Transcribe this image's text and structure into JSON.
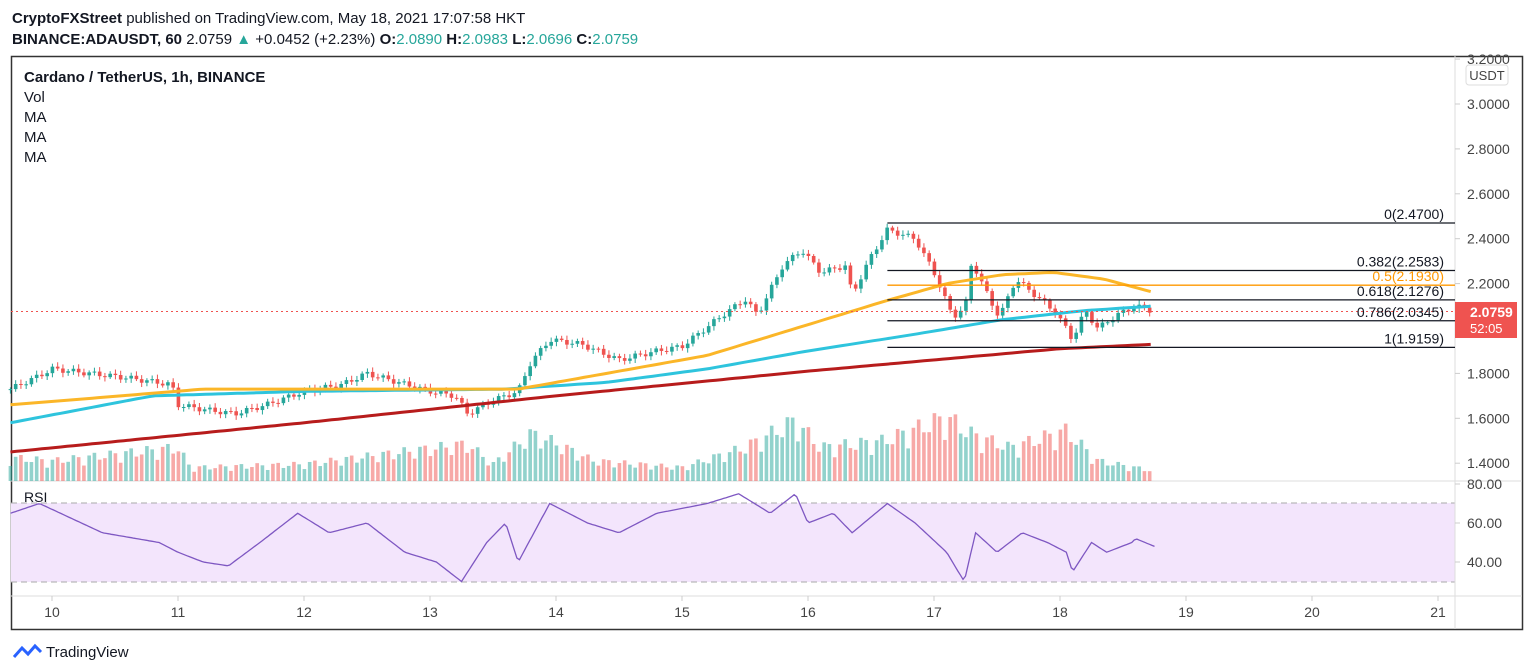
{
  "header": {
    "author": "CryptoFXStreet",
    "published": "published on TradingView.com, May 18, 2021 17:07:58 HKT",
    "symbol": "BINANCE:ADAUSDT, 60",
    "last": "2.0759",
    "change": "+0.0452 (+2.23%)",
    "o_label": "O:",
    "o": "2.0890",
    "h_label": "H:",
    "h": "2.0983",
    "l_label": "L:",
    "l": "2.0696",
    "c_label": "C:",
    "c": "2.0759"
  },
  "legend": {
    "title": "Cardano / TetherUS, 1h, BINANCE",
    "items": [
      "Vol",
      "MA",
      "MA",
      "MA"
    ]
  },
  "price_axis": {
    "currency": "USDT",
    "last_price": "2.0759",
    "countdown": "52:05"
  },
  "rsi": {
    "label": "RSI"
  },
  "footer": {
    "brand": "TradingView"
  },
  "colors": {
    "up": "#26a69a",
    "down": "#ef5350",
    "ma_fast": "#fbb628",
    "ma_mid": "#2ec4dd",
    "ma_slow": "#b71c1c",
    "rsi": "#7e57c2",
    "rsi_band": "#f3e5fc",
    "fib_mid": "#ff9800"
  },
  "chart_data": {
    "type": "candlestick",
    "x_unit": "day of May 2021",
    "x_ticks": [
      "10",
      "11",
      "12",
      "13",
      "14",
      "15",
      "16",
      "17",
      "18",
      "19",
      "20",
      "21"
    ],
    "y_ticks": [
      "1.4000",
      "1.6000",
      "1.8000",
      "2.0000",
      "2.2000",
      "2.4000",
      "2.6000",
      "2.8000",
      "3.0000",
      "3.2000"
    ],
    "ylim": [
      1.35,
      3.2
    ],
    "close": [
      [
        9.67,
        1.73
      ],
      [
        9.9,
        1.79
      ],
      [
        10.0,
        1.82
      ],
      [
        10.3,
        1.8
      ],
      [
        10.6,
        1.78
      ],
      [
        10.95,
        1.75
      ],
      [
        11.0,
        1.66
      ],
      [
        11.2,
        1.64
      ],
      [
        11.45,
        1.62
      ],
      [
        11.7,
        1.66
      ],
      [
        12.0,
        1.72
      ],
      [
        12.3,
        1.75
      ],
      [
        12.5,
        1.8
      ],
      [
        12.75,
        1.76
      ],
      [
        13.0,
        1.72
      ],
      [
        13.2,
        1.7
      ],
      [
        13.3,
        1.62
      ],
      [
        13.5,
        1.68
      ],
      [
        13.7,
        1.72
      ],
      [
        13.8,
        1.85
      ],
      [
        13.95,
        1.95
      ],
      [
        14.2,
        1.93
      ],
      [
        14.5,
        1.86
      ],
      [
        14.8,
        1.9
      ],
      [
        15.0,
        1.92
      ],
      [
        15.3,
        2.05
      ],
      [
        15.5,
        2.13
      ],
      [
        15.6,
        2.06
      ],
      [
        15.8,
        2.28
      ],
      [
        15.95,
        2.35
      ],
      [
        16.1,
        2.25
      ],
      [
        16.3,
        2.28
      ],
      [
        16.35,
        2.15
      ],
      [
        16.5,
        2.32
      ],
      [
        16.63,
        2.44
      ],
      [
        16.85,
        2.4
      ],
      [
        17.0,
        2.25
      ],
      [
        17.15,
        2.05
      ],
      [
        17.25,
        2.1
      ],
      [
        17.3,
        2.3
      ],
      [
        17.45,
        2.12
      ],
      [
        17.52,
        2.05
      ],
      [
        17.65,
        2.22
      ],
      [
        17.8,
        2.15
      ],
      [
        17.95,
        2.08
      ],
      [
        18.05,
        2.0
      ],
      [
        18.1,
        1.95
      ],
      [
        18.2,
        2.08
      ],
      [
        18.3,
        2.0
      ],
      [
        18.45,
        2.06
      ],
      [
        18.6,
        2.1
      ],
      [
        18.75,
        2.0759
      ]
    ],
    "ma_fast": [
      [
        9.67,
        1.66
      ],
      [
        11.2,
        1.73
      ],
      [
        13.7,
        1.73
      ],
      [
        14.4,
        1.8
      ],
      [
        15.2,
        1.88
      ],
      [
        15.9,
        2.0
      ],
      [
        16.6,
        2.12
      ],
      [
        17.1,
        2.2
      ],
      [
        17.55,
        2.24
      ],
      [
        17.95,
        2.25
      ],
      [
        18.35,
        2.22
      ],
      [
        18.75,
        2.16
      ]
    ],
    "ma_mid": [
      [
        9.67,
        1.58
      ],
      [
        10.8,
        1.7
      ],
      [
        12.0,
        1.72
      ],
      [
        13.6,
        1.73
      ],
      [
        14.4,
        1.76
      ],
      [
        15.2,
        1.82
      ],
      [
        16.0,
        1.9
      ],
      [
        16.8,
        1.97
      ],
      [
        17.55,
        2.04
      ],
      [
        18.2,
        2.08
      ],
      [
        18.75,
        2.1
      ]
    ],
    "ma_slow": [
      [
        9.67,
        1.45
      ],
      [
        12.0,
        1.58
      ],
      [
        14.0,
        1.7
      ],
      [
        16.0,
        1.81
      ],
      [
        18.0,
        1.91
      ],
      [
        18.75,
        1.93
      ]
    ],
    "volume_rel": [
      [
        9.67,
        0.35
      ],
      [
        10.0,
        0.3
      ],
      [
        11.0,
        0.5
      ],
      [
        11.1,
        0.2
      ],
      [
        12.0,
        0.25
      ],
      [
        13.3,
        0.55
      ],
      [
        13.5,
        0.25
      ],
      [
        13.8,
        0.7
      ],
      [
        13.95,
        0.6
      ],
      [
        14.3,
        0.3
      ],
      [
        15.0,
        0.2
      ],
      [
        15.5,
        0.5
      ],
      [
        15.9,
        0.9
      ],
      [
        16.1,
        0.5
      ],
      [
        16.6,
        0.6
      ],
      [
        17.1,
        0.95
      ],
      [
        17.3,
        0.7
      ],
      [
        17.6,
        0.5
      ],
      [
        18.05,
        0.75
      ],
      [
        18.3,
        0.3
      ],
      [
        18.75,
        0.15
      ]
    ],
    "rsi": [
      [
        9.67,
        65
      ],
      [
        9.9,
        70
      ],
      [
        10.4,
        55
      ],
      [
        10.85,
        50
      ],
      [
        11.0,
        45
      ],
      [
        11.2,
        40
      ],
      [
        11.4,
        38
      ],
      [
        11.65,
        50
      ],
      [
        11.95,
        65
      ],
      [
        12.2,
        55
      ],
      [
        12.5,
        60
      ],
      [
        12.8,
        45
      ],
      [
        13.05,
        40
      ],
      [
        13.25,
        30
      ],
      [
        13.45,
        50
      ],
      [
        13.6,
        60
      ],
      [
        13.7,
        40
      ],
      [
        13.95,
        70
      ],
      [
        14.25,
        60
      ],
      [
        14.5,
        55
      ],
      [
        14.8,
        65
      ],
      [
        15.2,
        70
      ],
      [
        15.45,
        75
      ],
      [
        15.7,
        65
      ],
      [
        15.9,
        75
      ],
      [
        16.0,
        60
      ],
      [
        16.2,
        65
      ],
      [
        16.35,
        55
      ],
      [
        16.63,
        70
      ],
      [
        16.85,
        60
      ],
      [
        17.1,
        45
      ],
      [
        17.24,
        30
      ],
      [
        17.33,
        55
      ],
      [
        17.5,
        45
      ],
      [
        17.7,
        55
      ],
      [
        17.9,
        50
      ],
      [
        18.05,
        45
      ],
      [
        18.1,
        35
      ],
      [
        18.25,
        50
      ],
      [
        18.37,
        45
      ],
      [
        18.57,
        50
      ],
      [
        18.6,
        52
      ],
      [
        18.75,
        48
      ]
    ],
    "rsi_ticks": [
      "40.00",
      "60.00",
      "80.00"
    ],
    "rsi_bands": [
      30,
      70
    ],
    "fib_start_day": 16.63,
    "fib_levels": [
      {
        "label": "0(2.4700)",
        "value": 2.47
      },
      {
        "label": "0.382(2.2583)",
        "value": 2.2583
      },
      {
        "label": "0.5(2.1930)",
        "value": 2.193
      },
      {
        "label": "0.618(2.1276)",
        "value": 2.1276
      },
      {
        "label": "0.786(2.0345)",
        "value": 2.0345
      },
      {
        "label": "1(1.9159)",
        "value": 1.9159
      }
    ]
  }
}
